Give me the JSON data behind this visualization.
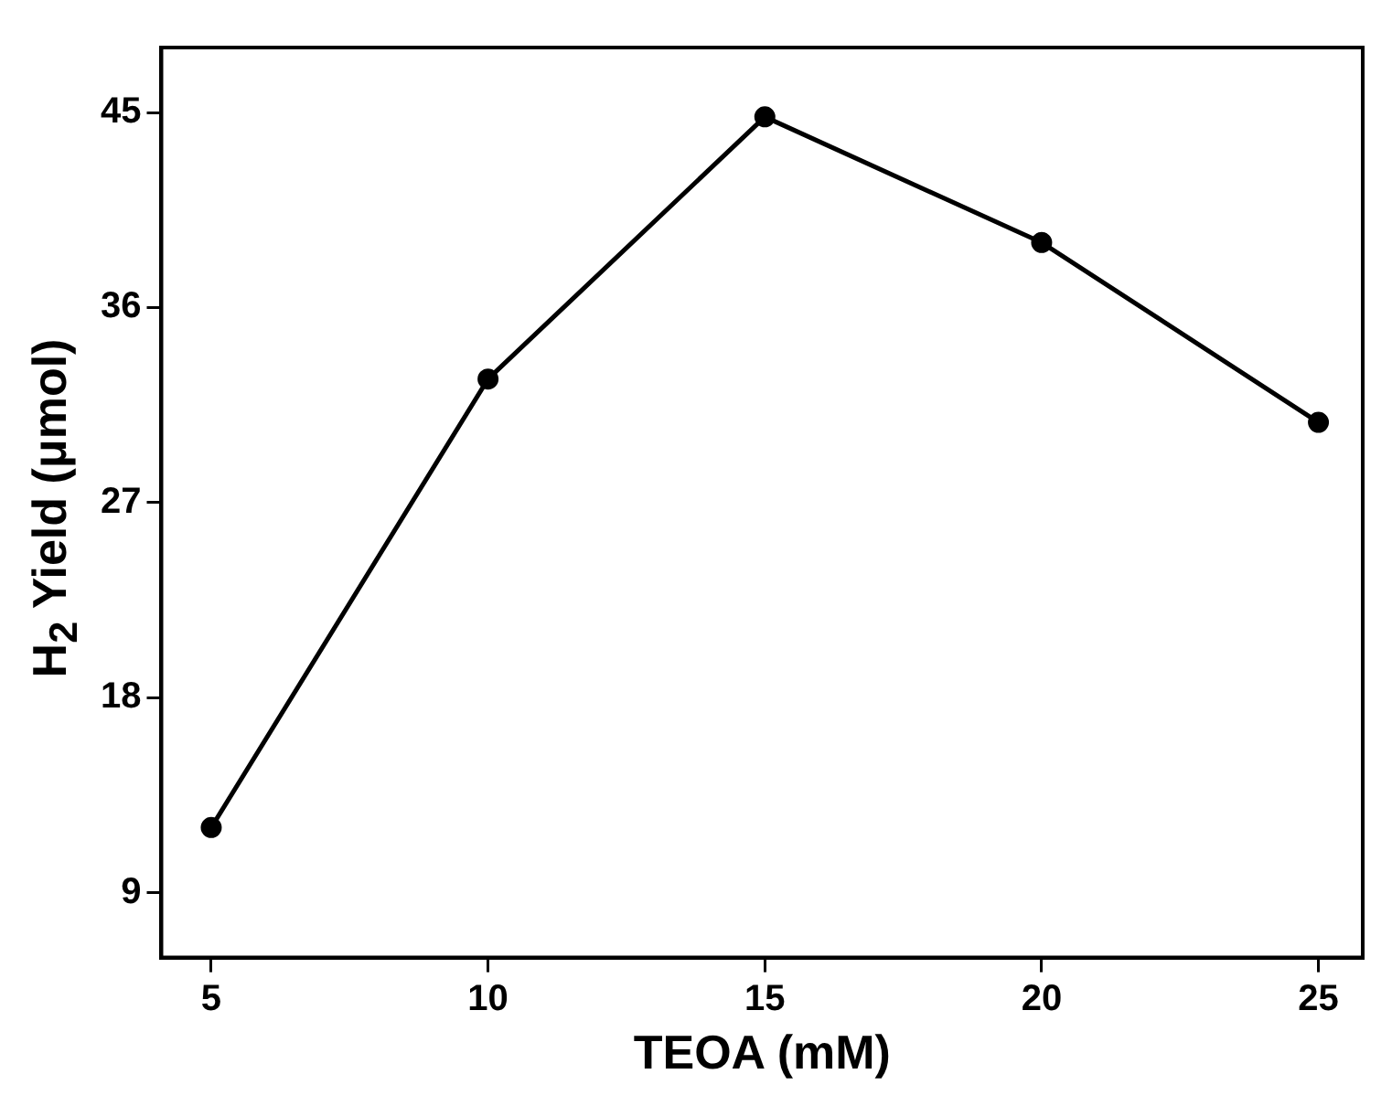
{
  "chart_data": {
    "type": "line",
    "xlabel": "TEOA (mM)",
    "ylabel": "H$_{2}$ Yield (μmol)",
    "x": [
      5,
      10,
      15,
      20,
      25
    ],
    "series": [
      {
        "color": "#000000",
        "values": [
          12,
          32.7,
          44.8,
          39,
          30.7
        ]
      }
    ],
    "xlim": [
      4.1,
      25.8
    ],
    "xticks": [
      5,
      10,
      15,
      20,
      25
    ],
    "ylim": [
      6,
      48
    ],
    "yticks": [
      9,
      18,
      27,
      36,
      45
    ],
    "marker": "circle",
    "line_style": "solid",
    "grid": false,
    "legend": false
  }
}
